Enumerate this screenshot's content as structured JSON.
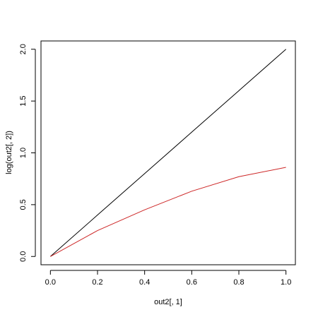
{
  "chart_data": {
    "type": "line",
    "xlabel": "out2[, 1]",
    "ylabel": "log(out2[, 2])",
    "x": [
      0,
      0.2,
      0.4,
      0.6,
      0.8,
      1.0
    ],
    "series": [
      {
        "color": "#000000",
        "values": [
          0,
          0.4,
          0.8,
          1.2,
          1.6,
          2.0
        ]
      },
      {
        "color": "#cd2626",
        "values": [
          0,
          0.25,
          0.45,
          0.63,
          0.77,
          0.86
        ]
      }
    ],
    "xlim": [
      -0.04,
      1.04
    ],
    "ylim": [
      -0.08,
      2.08
    ],
    "xticks": [
      {
        "value": 0,
        "label": "0.0"
      },
      {
        "value": 0.2,
        "label": "0.2"
      },
      {
        "value": 0.4,
        "label": "0.4"
      },
      {
        "value": 0.6,
        "label": "0.6"
      },
      {
        "value": 0.8,
        "label": "0.8"
      },
      {
        "value": 1.0,
        "label": "1.0"
      }
    ],
    "yticks": [
      {
        "value": 0,
        "label": "0.0"
      },
      {
        "value": 0.5,
        "label": "0.5"
      },
      {
        "value": 1.0,
        "label": "1.0"
      },
      {
        "value": 1.5,
        "label": "1.5"
      },
      {
        "value": 2.0,
        "label": "2.0"
      }
    ]
  }
}
